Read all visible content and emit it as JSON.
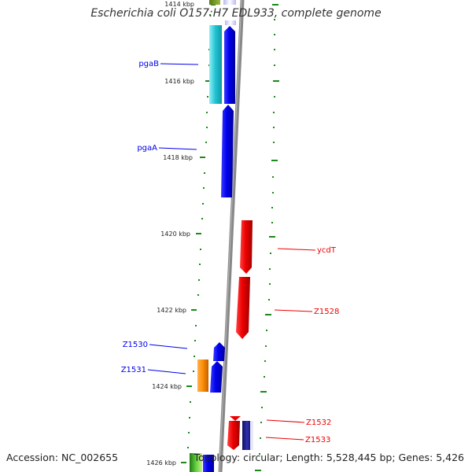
{
  "title": "Escherichia coli O157:H7 EDL933, complete genome",
  "footer": {
    "accession": "Accession: NC_002655",
    "topology": "Topology: circular; Length: 5,528,445 bp; Genes: 5,426"
  },
  "ticks": [
    "1414 kbp",
    "1416 kbp",
    "1418 kbp",
    "1420 kbp",
    "1422 kbp",
    "1424 kbp",
    "1426 kbp"
  ],
  "genes_reverse_strand": [
    {
      "name": "pgaB",
      "color": "#0000ee"
    },
    {
      "name": "pgaA",
      "color": "#0000ee"
    },
    {
      "name": "Z1530",
      "color": "#0000ee"
    },
    {
      "name": "Z1531",
      "color": "#0000ee"
    }
  ],
  "genes_forward_strand": [
    {
      "name": "ycdT",
      "color": "#ee0000"
    },
    {
      "name": "Z1528",
      "color": "#ee0000"
    },
    {
      "name": "Z1532",
      "color": "#ee0000"
    },
    {
      "name": "Z1533",
      "color": "#ee0000"
    }
  ],
  "colors": {
    "backbone": "#888888",
    "tick": "#1a8a1a",
    "reverse_gene": "#0000ee",
    "forward_gene": "#ee0000",
    "cyan_feature": "#20c0d0",
    "orange_feature": "#ff8c00",
    "green_feature": "#40b020"
  }
}
